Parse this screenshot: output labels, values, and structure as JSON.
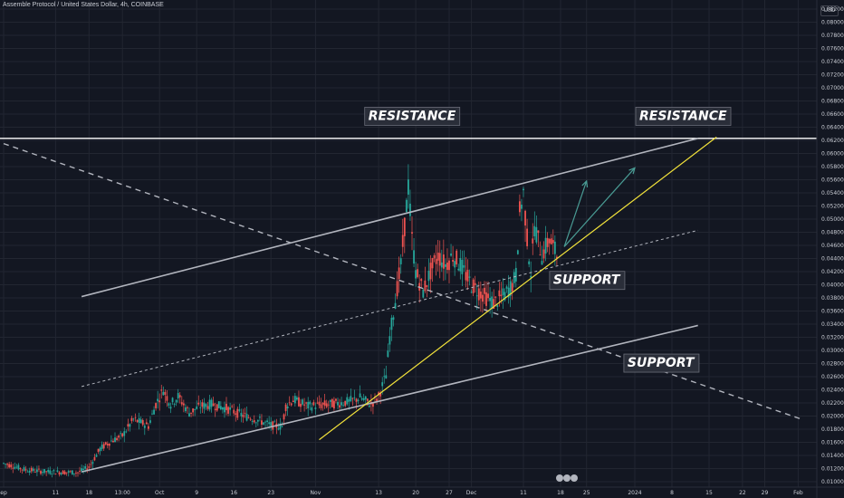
{
  "header": {
    "symbol_title": "Assemble Protocol / United States Dollar, 4h, COINBASE",
    "currency": "USD"
  },
  "colors": {
    "background": "#131722",
    "grid": "#222631",
    "candle_up": "#26a69a",
    "candle_down": "#ef5350",
    "channel_line": "#b2b5be",
    "trend_line": "#f3e33b",
    "arrow": "#4a9c95",
    "horizontal_line": "#ffffff"
  },
  "chart_data": {
    "type": "candlestick",
    "timeframe": "4h",
    "y_axis": {
      "min": 0.01,
      "max": 0.082,
      "ticks": [
        "0.08200",
        "0.08000",
        "0.07800",
        "0.07600",
        "0.07400",
        "0.07200",
        "0.07000",
        "0.06800",
        "0.06600",
        "0.06400",
        "0.06200",
        "0.06000",
        "0.05800",
        "0.05600",
        "0.05400",
        "0.05200",
        "0.05000",
        "0.04800",
        "0.04600",
        "0.04400",
        "0.04200",
        "0.04000",
        "0.03800",
        "0.03600",
        "0.03400",
        "0.03200",
        "0.03000",
        "0.02800",
        "0.02600",
        "0.02400",
        "0.02200",
        "0.02000",
        "0.01800",
        "0.01600",
        "0.01400",
        "0.01200",
        "0.01000"
      ]
    },
    "x_axis": {
      "ticks": [
        {
          "label": "ep",
          "idx": 0
        },
        {
          "label": "11",
          "idx": 14
        },
        {
          "label": "18",
          "idx": 23
        },
        {
          "label": "13:00",
          "idx": 32
        },
        {
          "label": "Oct",
          "idx": 42
        },
        {
          "label": "9",
          "idx": 52
        },
        {
          "label": "16",
          "idx": 62
        },
        {
          "label": "23",
          "idx": 72
        },
        {
          "label": "Nov",
          "idx": 84
        },
        {
          "label": "13",
          "idx": 101
        },
        {
          "label": "20",
          "idx": 111
        },
        {
          "label": "27",
          "idx": 120
        },
        {
          "label": "Dec",
          "idx": 126
        },
        {
          "label": "11",
          "idx": 140
        },
        {
          "label": "18",
          "idx": 150
        },
        {
          "label": "25",
          "idx": 157
        },
        {
          "label": "2024",
          "idx": 170
        },
        {
          "label": "8",
          "idx": 180
        },
        {
          "label": "15",
          "idx": 190
        },
        {
          "label": "22",
          "idx": 199
        },
        {
          "label": "29",
          "idx": 205
        },
        {
          "label": "Feb",
          "idx": 214
        }
      ]
    },
    "price_path": [
      [
        0,
        0.0128
      ],
      [
        6,
        0.0118
      ],
      [
        12,
        0.0115
      ],
      [
        20,
        0.0114
      ],
      [
        23,
        0.0122
      ],
      [
        26,
        0.015
      ],
      [
        29,
        0.0162
      ],
      [
        32,
        0.017
      ],
      [
        35,
        0.0195
      ],
      [
        39,
        0.0185
      ],
      [
        41,
        0.0218
      ],
      [
        43,
        0.024
      ],
      [
        45,
        0.0218
      ],
      [
        47,
        0.023
      ],
      [
        50,
        0.0205
      ],
      [
        53,
        0.0215
      ],
      [
        56,
        0.0218
      ],
      [
        60,
        0.0212
      ],
      [
        64,
        0.0202
      ],
      [
        68,
        0.0195
      ],
      [
        72,
        0.0186
      ],
      [
        75,
        0.0184
      ],
      [
        76,
        0.0215
      ],
      [
        78,
        0.0225
      ],
      [
        82,
        0.0215
      ],
      [
        88,
        0.0218
      ],
      [
        93,
        0.0222
      ],
      [
        96,
        0.0228
      ],
      [
        99,
        0.0218
      ],
      [
        101,
        0.023
      ],
      [
        103,
        0.0262
      ],
      [
        104,
        0.032
      ],
      [
        106,
        0.0395
      ],
      [
        107,
        0.043
      ],
      [
        108,
        0.049
      ],
      [
        109,
        0.055
      ],
      [
        110,
        0.047
      ],
      [
        111,
        0.042
      ],
      [
        113,
        0.039
      ],
      [
        115,
        0.042
      ],
      [
        117,
        0.0445
      ],
      [
        119,
        0.043
      ],
      [
        121,
        0.0445
      ],
      [
        123,
        0.043
      ],
      [
        126,
        0.04
      ],
      [
        129,
        0.0385
      ],
      [
        132,
        0.0372
      ],
      [
        135,
        0.0385
      ],
      [
        137,
        0.04
      ],
      [
        138,
        0.0415
      ],
      [
        139,
        0.051
      ],
      [
        140,
        0.054
      ],
      [
        141,
        0.047
      ],
      [
        142,
        0.042
      ],
      [
        143,
        0.049
      ],
      [
        145,
        0.0445
      ],
      [
        147,
        0.047
      ],
      [
        149,
        0.0445
      ]
    ],
    "series": [],
    "drawings": {
      "horizontal_resistance": {
        "price": 0.0623,
        "label": "RESISTANCE"
      },
      "channel_upper": {
        "from": [
          21,
          0.0382
        ],
        "to": [
          187,
          0.0623
        ]
      },
      "channel_middle": {
        "from": [
          21,
          0.0245
        ],
        "to": [
          187,
          0.0483
        ]
      },
      "channel_lower": {
        "from": [
          21,
          0.0115
        ],
        "to": [
          187,
          0.0338
        ]
      },
      "yellow_trend": {
        "from": [
          85,
          0.0164
        ],
        "to": [
          192,
          0.0625
        ]
      },
      "dashed_downtrend": {
        "from": [
          0,
          0.0615
        ],
        "to": [
          215,
          0.0195
        ]
      },
      "arrow_up_1": {
        "from": [
          151,
          0.0458
        ],
        "to": [
          157,
          0.0558
        ]
      },
      "arrow_up_2": {
        "from": [
          151,
          0.0458
        ],
        "to": [
          170,
          0.0578
        ]
      }
    },
    "annotations": [
      {
        "text": "RESISTANCE",
        "idx": 110,
        "price": 0.0658
      },
      {
        "text": "RESISTANCE",
        "idx": 183,
        "price": 0.0658
      },
      {
        "text": "SUPPORT",
        "idx": 157,
        "price": 0.0408
      },
      {
        "text": "SUPPORT",
        "idx": 177,
        "price": 0.0282
      }
    ]
  }
}
